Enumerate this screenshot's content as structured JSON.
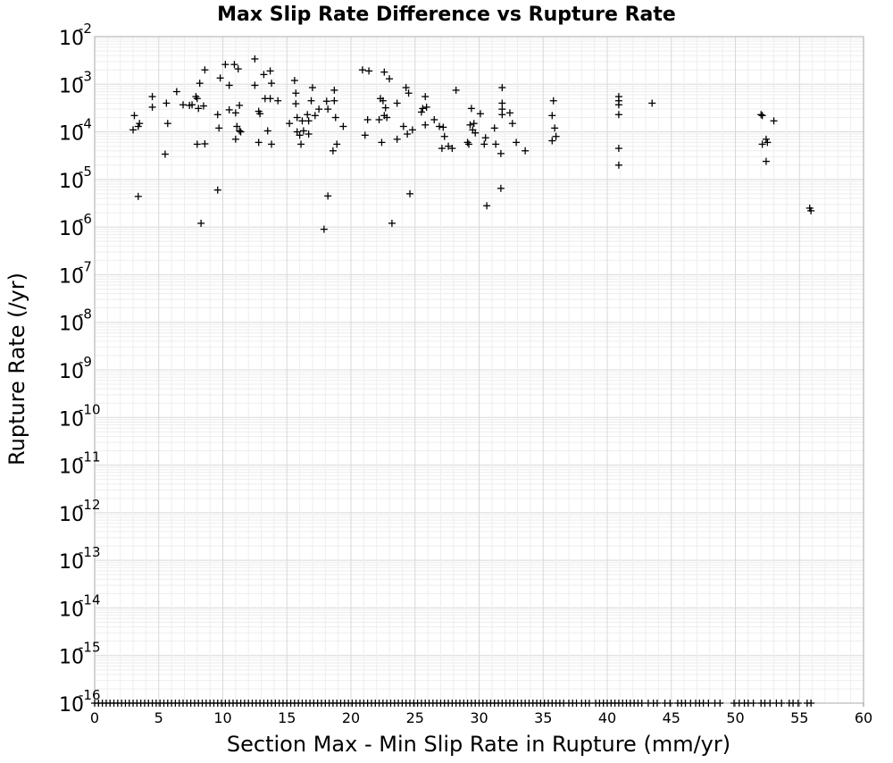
{
  "chart_data": {
    "type": "scatter",
    "title": "Max Slip Rate Difference vs Rupture Rate",
    "xlabel": "Section Max - Min Slip Rate in Rupture (mm/yr)",
    "ylabel": "Rupture Rate (/yr)",
    "xlim": [
      0,
      60
    ],
    "ylim": [
      1e-16,
      0.01
    ],
    "yscale": "log",
    "grid": true,
    "marker": "+",
    "marker_color": "#000000",
    "background": "#ffffff",
    "x_ticks": [
      "0",
      "5",
      "10",
      "15",
      "20",
      "25",
      "30",
      "35",
      "40",
      "45",
      "50",
      "55",
      "60"
    ],
    "y_ticks": [
      {
        "base": "10",
        "exp": "-2"
      },
      {
        "base": "10",
        "exp": "-3"
      },
      {
        "base": "10",
        "exp": "-4"
      },
      {
        "base": "10",
        "exp": "-5"
      },
      {
        "base": "10",
        "exp": "-6"
      },
      {
        "base": "10",
        "exp": "-7"
      },
      {
        "base": "10",
        "exp": "-8"
      },
      {
        "base": "10",
        "exp": "-9"
      },
      {
        "base": "10",
        "exp": "-10"
      },
      {
        "base": "10",
        "exp": "-11"
      },
      {
        "base": "10",
        "exp": "-12"
      },
      {
        "base": "10",
        "exp": "-13"
      },
      {
        "base": "10",
        "exp": "-14"
      },
      {
        "base": "10",
        "exp": "-15"
      },
      {
        "base": "10",
        "exp": "-16"
      }
    ],
    "points": [
      [
        3.1,
        0.00022
      ],
      [
        3.0,
        0.00011
      ],
      [
        3.4,
        0.00013
      ],
      [
        3.5,
        0.00015
      ],
      [
        3.4,
        4.4e-06
      ],
      [
        4.5,
        0.00055
      ],
      [
        4.5,
        0.00033
      ],
      [
        5.5,
        3.4e-05
      ],
      [
        5.6,
        0.0004
      ],
      [
        5.7,
        0.00015
      ],
      [
        6.4,
        0.0007
      ],
      [
        6.9,
        0.00037
      ],
      [
        7.4,
        0.00036
      ],
      [
        7.6,
        0.00037
      ],
      [
        7.9,
        0.00055
      ],
      [
        8.0,
        0.0005
      ],
      [
        8.1,
        0.00031
      ],
      [
        8.2,
        0.00105
      ],
      [
        8.0,
        5.5e-05
      ],
      [
        8.5,
        0.00035
      ],
      [
        8.6,
        5.6e-05
      ],
      [
        8.6,
        0.002
      ],
      [
        8.3,
        1.2e-06
      ],
      [
        9.6,
        0.00023
      ],
      [
        9.7,
        0.00012
      ],
      [
        9.8,
        0.00135
      ],
      [
        9.6,
        6e-06
      ],
      [
        10.2,
        0.0026
      ],
      [
        10.5,
        0.00095
      ],
      [
        10.5,
        0.00029
      ],
      [
        10.9,
        0.0026
      ],
      [
        11.0,
        0.00025
      ],
      [
        11.2,
        0.0021
      ],
      [
        11.3,
        0.00036
      ],
      [
        11.1,
        0.00013
      ],
      [
        11.3,
        0.000105
      ],
      [
        11.4,
        0.0001
      ],
      [
        11.0,
        7e-05
      ],
      [
        12.5,
        0.0034
      ],
      [
        12.5,
        0.00095
      ],
      [
        12.8,
        0.00027
      ],
      [
        12.9,
        0.00024
      ],
      [
        12.8,
        6e-05
      ],
      [
        13.2,
        0.0016
      ],
      [
        13.3,
        0.0005
      ],
      [
        13.5,
        0.000105
      ],
      [
        13.7,
        0.0005
      ],
      [
        13.7,
        0.0019
      ],
      [
        13.8,
        0.00105
      ],
      [
        13.8,
        5.5e-05
      ],
      [
        14.3,
        0.00045
      ],
      [
        15.2,
        0.00015
      ],
      [
        15.6,
        0.0012
      ],
      [
        15.7,
        0.00065
      ],
      [
        15.7,
        0.00039
      ],
      [
        15.8,
        0.0002
      ],
      [
        15.8,
        0.0001
      ],
      [
        16.0,
        8.5e-05
      ],
      [
        16.1,
        5.5e-05
      ],
      [
        16.2,
        0.00017
      ],
      [
        16.3,
        0.000105
      ],
      [
        16.6,
        0.00023
      ],
      [
        16.7,
        9e-05
      ],
      [
        16.7,
        0.00017
      ],
      [
        16.9,
        0.00045
      ],
      [
        17.0,
        0.00085
      ],
      [
        17.2,
        0.00022
      ],
      [
        17.5,
        0.0003
      ],
      [
        17.9,
        9e-07
      ],
      [
        18.1,
        0.00044
      ],
      [
        18.2,
        4.5e-06
      ],
      [
        18.2,
        0.0003
      ],
      [
        18.6,
        4e-05
      ],
      [
        18.7,
        0.00075
      ],
      [
        18.7,
        0.00045
      ],
      [
        18.8,
        0.0002
      ],
      [
        18.9,
        5.5e-05
      ],
      [
        19.4,
        0.00013
      ],
      [
        20.9,
        0.002
      ],
      [
        21.1,
        8.5e-05
      ],
      [
        21.3,
        0.00018
      ],
      [
        21.4,
        0.0019
      ],
      [
        22.2,
        0.00018
      ],
      [
        22.3,
        0.0005
      ],
      [
        22.4,
        6e-05
      ],
      [
        22.5,
        0.00045
      ],
      [
        22.6,
        0.0018
      ],
      [
        22.6,
        0.00022
      ],
      [
        22.7,
        0.00032
      ],
      [
        22.8,
        0.0002
      ],
      [
        23.0,
        0.0013
      ],
      [
        23.2,
        1.2e-06
      ],
      [
        23.6,
        7e-05
      ],
      [
        23.6,
        0.0004
      ],
      [
        24.1,
        0.00013
      ],
      [
        24.3,
        0.00085
      ],
      [
        24.4,
        9e-05
      ],
      [
        24.5,
        0.00065
      ],
      [
        24.6,
        5e-06
      ],
      [
        24.8,
        0.00011
      ],
      [
        25.5,
        0.00026
      ],
      [
        25.6,
        0.00031
      ],
      [
        25.8,
        0.00055
      ],
      [
        25.9,
        0.00033
      ],
      [
        25.8,
        0.00014
      ],
      [
        26.5,
        0.00018
      ],
      [
        26.9,
        0.00013
      ],
      [
        27.2,
        0.000125
      ],
      [
        27.1,
        4.5e-05
      ],
      [
        27.3,
        8e-05
      ],
      [
        27.6,
        5e-05
      ],
      [
        27.9,
        4.5e-05
      ],
      [
        28.2,
        0.00075
      ],
      [
        29.1,
        6e-05
      ],
      [
        29.2,
        5.5e-05
      ],
      [
        29.3,
        0.00014
      ],
      [
        29.4,
        0.00031
      ],
      [
        29.5,
        0.00011
      ],
      [
        29.6,
        0.00015
      ],
      [
        29.7,
        9.5e-05
      ],
      [
        30.1,
        0.00024
      ],
      [
        30.4,
        5.5e-05
      ],
      [
        30.5,
        7.5e-05
      ],
      [
        30.6,
        2.8e-06
      ],
      [
        31.2,
        0.00012
      ],
      [
        31.3,
        5.5e-05
      ],
      [
        31.7,
        3.5e-05
      ],
      [
        31.7,
        6.5e-06
      ],
      [
        31.8,
        0.00085
      ],
      [
        31.8,
        0.0004
      ],
      [
        31.8,
        0.0003
      ],
      [
        31.8,
        0.00023
      ],
      [
        32.4,
        0.00025
      ],
      [
        32.6,
        0.00015
      ],
      [
        32.9,
        6e-05
      ],
      [
        33.6,
        4e-05
      ],
      [
        35.7,
        0.00022
      ],
      [
        35.8,
        0.00045
      ],
      [
        35.7,
        6.5e-05
      ],
      [
        35.9,
        0.00012
      ],
      [
        36.0,
        8e-05
      ],
      [
        40.9,
        0.00055
      ],
      [
        40.9,
        0.00045
      ],
      [
        40.9,
        0.00037
      ],
      [
        40.9,
        0.00023
      ],
      [
        40.9,
        4.5e-05
      ],
      [
        40.9,
        2e-05
      ],
      [
        43.5,
        0.0004
      ],
      [
        52.0,
        0.00023
      ],
      [
        52.1,
        0.00022
      ],
      [
        52.1,
        5.5e-05
      ],
      [
        52.4,
        7e-05
      ],
      [
        52.5,
        6e-05
      ],
      [
        52.4,
        2.4e-05
      ],
      [
        53.0,
        0.00017
      ],
      [
        55.8,
        2.5e-06
      ],
      [
        55.9,
        2.2e-06
      ]
    ],
    "points_at_floor": [
      0.0,
      0.3,
      0.6,
      0.9,
      1.2,
      1.5,
      1.8,
      2.1,
      2.4,
      2.7,
      3.0,
      3.3,
      3.6,
      3.9,
      4.2,
      4.5,
      4.8,
      5.1,
      5.4,
      5.7,
      6.0,
      6.3,
      6.6,
      6.9,
      7.2,
      7.5,
      7.8,
      8.1,
      8.4,
      8.7,
      9.0,
      9.3,
      9.6,
      9.9,
      10.2,
      10.5,
      10.8,
      11.1,
      11.4,
      11.7,
      12.0,
      12.3,
      12.6,
      12.9,
      13.2,
      13.5,
      13.8,
      14.1,
      14.4,
      14.7,
      15.0,
      15.3,
      15.6,
      15.9,
      16.2,
      16.5,
      16.8,
      17.1,
      17.4,
      17.7,
      18.0,
      18.3,
      18.6,
      18.9,
      19.2,
      19.5,
      19.8,
      20.1,
      20.4,
      20.7,
      21.0,
      21.3,
      21.6,
      21.9,
      22.2,
      22.5,
      22.8,
      23.1,
      23.4,
      23.7,
      24.0,
      24.3,
      24.6,
      24.9,
      25.2,
      25.5,
      25.8,
      26.1,
      26.4,
      26.7,
      27.0,
      27.3,
      27.6,
      27.9,
      28.2,
      28.5,
      28.8,
      29.1,
      29.4,
      29.7,
      30.0,
      30.3,
      30.6,
      30.9,
      31.2,
      31.5,
      31.8,
      32.1,
      32.4,
      32.7,
      33.0,
      33.3,
      33.6,
      33.9,
      34.2,
      34.5,
      34.8,
      35.1,
      35.4,
      35.7,
      36.0,
      36.3,
      36.6,
      37.0,
      37.3,
      37.6,
      38.0,
      38.3,
      38.6,
      39.1,
      39.4,
      39.7,
      40.0,
      40.3,
      40.6,
      40.9,
      41.2,
      41.5,
      41.8,
      42.1,
      42.4,
      42.7,
      43.2,
      43.6,
      43.9,
      44.5,
      44.9,
      45.5,
      45.8,
      46.1,
      46.5,
      46.9,
      47.2,
      47.5,
      47.9,
      48.4,
      48.8,
      49.9,
      50.3,
      50.7,
      51.0,
      51.4,
      52.0,
      52.3,
      52.7,
      53.2,
      53.6,
      54.2,
      54.5,
      54.9,
      55.6,
      55.9
    ]
  }
}
